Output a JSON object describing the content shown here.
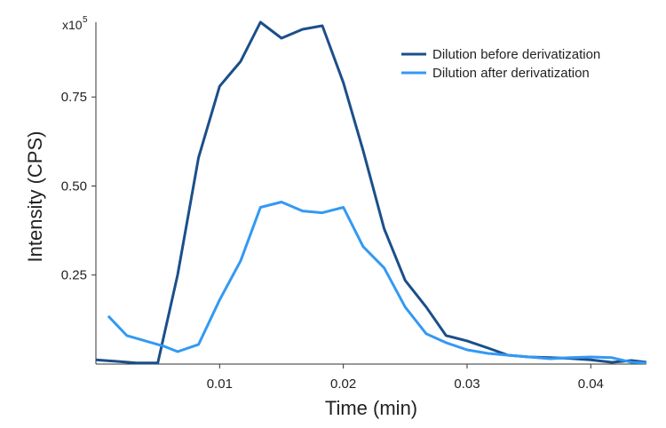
{
  "chart_data": {
    "type": "line",
    "title": "",
    "xlabel": "Time (min)",
    "ylabel": "Intensity (CPS)",
    "y_multiplier_label": "x10",
    "y_multiplier_exponent": "5",
    "xlim": [
      0,
      0.0445
    ],
    "ylim": [
      0,
      0.96
    ],
    "xticks": [
      0.01,
      0.02,
      0.03,
      0.04
    ],
    "xtick_labels": [
      "0.01",
      "0.02",
      "0.03",
      "0.04"
    ],
    "yticks": [
      0.25,
      0.5,
      0.75
    ],
    "ytick_labels": [
      "0.25",
      "0.50",
      "0.75"
    ],
    "grid": false,
    "legend_position": "top-right",
    "series": [
      {
        "name": "Dilution before derivatization",
        "color": "#1b4f8a",
        "x": [
          0.0,
          0.0015,
          0.0033,
          0.005,
          0.0066,
          0.0083,
          0.01,
          0.0117,
          0.0133,
          0.015,
          0.0167,
          0.0183,
          0.02,
          0.0216,
          0.0233,
          0.025,
          0.0267,
          0.0283,
          0.03,
          0.0317,
          0.0333,
          0.035,
          0.0367,
          0.0383,
          0.04,
          0.0417,
          0.0433,
          0.0445
        ],
        "y": [
          0.012,
          0.008,
          0.003,
          0.003,
          0.25,
          0.58,
          0.78,
          0.85,
          0.96,
          0.915,
          0.94,
          0.95,
          0.79,
          0.6,
          0.38,
          0.235,
          0.16,
          0.08,
          0.065,
          0.045,
          0.025,
          0.02,
          0.018,
          0.016,
          0.012,
          0.005,
          0.01,
          0.005
        ]
      },
      {
        "name": "Dilution after derivatization",
        "color": "#3399f3",
        "x": [
          0.001,
          0.0025,
          0.004,
          0.0055,
          0.0066,
          0.0083,
          0.01,
          0.0117,
          0.0133,
          0.015,
          0.0167,
          0.0183,
          0.02,
          0.0216,
          0.0233,
          0.025,
          0.0267,
          0.0283,
          0.03,
          0.0317,
          0.0333,
          0.035,
          0.0367,
          0.0383,
          0.04,
          0.0417,
          0.0433,
          0.0445
        ],
        "y": [
          0.135,
          0.08,
          0.065,
          0.05,
          0.035,
          0.055,
          0.18,
          0.29,
          0.44,
          0.455,
          0.43,
          0.425,
          0.44,
          0.33,
          0.27,
          0.16,
          0.085,
          0.06,
          0.04,
          0.03,
          0.025,
          0.02,
          0.015,
          0.018,
          0.02,
          0.018,
          0.005,
          0.003
        ]
      }
    ]
  }
}
